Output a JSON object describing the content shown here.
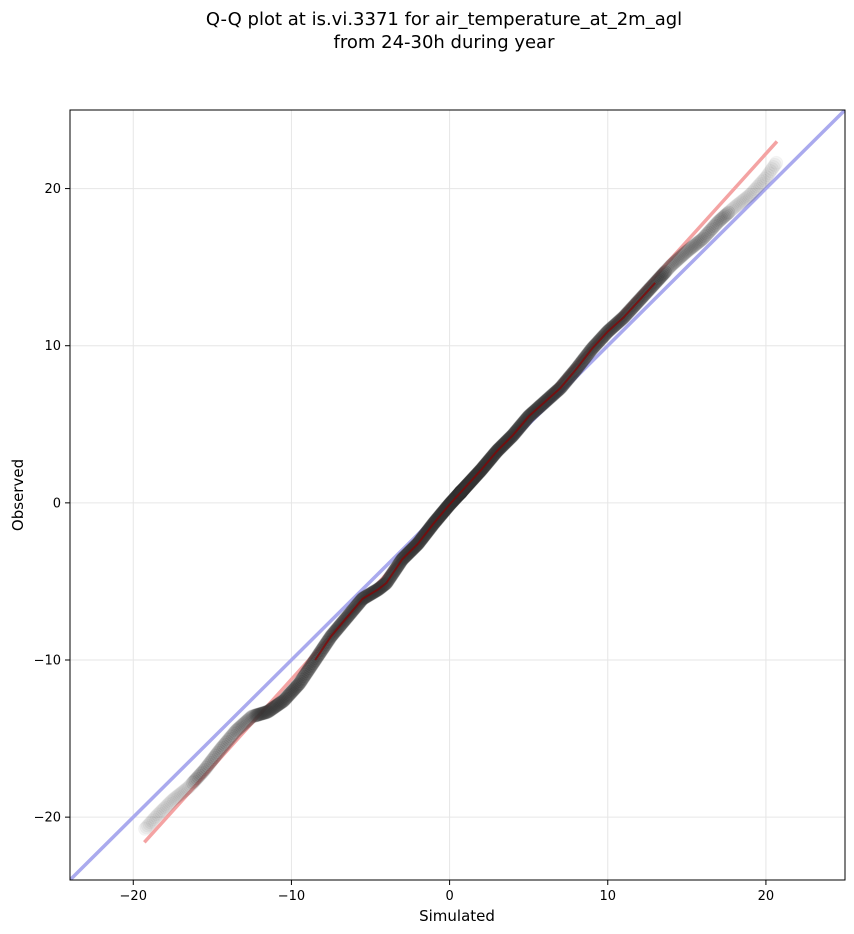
{
  "chart_data": {
    "type": "scatter",
    "title": [
      "Q-Q plot at is.vi.3371 for air_temperature_at_2m_agl",
      "from 24-30h during year"
    ],
    "xlabel": "Simulated",
    "ylabel": "Observed",
    "xlim": [
      -24,
      25
    ],
    "ylim": [
      -24,
      25
    ],
    "xticks": [
      -20,
      -10,
      0,
      10,
      20
    ],
    "yticks": [
      -20,
      -10,
      0,
      10,
      20
    ],
    "xtick_labels": [
      "−20",
      "−10",
      "0",
      "10",
      "20"
    ],
    "ytick_labels": [
      "−20",
      "−10",
      "0",
      "10",
      "20"
    ],
    "grid": true,
    "colors": {
      "points": "#333333",
      "identity_line": "#aaaaee",
      "fit_line": "#f4a3a3",
      "quantile_curve_core": "#8b0000"
    },
    "identity_line": {
      "x": [
        -24,
        25
      ],
      "y": [
        -24,
        25
      ]
    },
    "fit_line": {
      "x": [
        -19.3,
        20.7
      ],
      "y": [
        -21.6,
        23.0
      ]
    },
    "qq_curve": {
      "x": [
        -19.3,
        -18.5,
        -17.5,
        -16.5,
        -15.5,
        -14.5,
        -13.5,
        -12.5,
        -11.5,
        -10.5,
        -9.5,
        -8.5,
        -7.5,
        -6.5,
        -5.5,
        -4.5,
        -4.0,
        -3.0,
        -2.0,
        -1.0,
        0.0,
        1.0,
        2.0,
        3.0,
        4.0,
        5.0,
        6.0,
        7.0,
        8.0,
        9.0,
        10.0,
        11.0,
        12.0,
        13.0,
        14.0,
        15.0,
        16.0,
        17.0,
        18.0,
        19.0,
        20.0,
        20.7
      ],
      "y": [
        -20.8,
        -19.9,
        -18.9,
        -18.1,
        -17.0,
        -15.7,
        -14.5,
        -13.6,
        -13.3,
        -12.6,
        -11.5,
        -10.0,
        -8.5,
        -7.3,
        -6.1,
        -5.5,
        -5.1,
        -3.6,
        -2.6,
        -1.3,
        -0.1,
        1.0,
        2.1,
        3.3,
        4.3,
        5.5,
        6.4,
        7.3,
        8.5,
        9.8,
        10.9,
        11.8,
        12.9,
        14.0,
        15.1,
        16.0,
        16.8,
        17.9,
        18.8,
        19.6,
        20.7,
        21.7
      ]
    }
  }
}
